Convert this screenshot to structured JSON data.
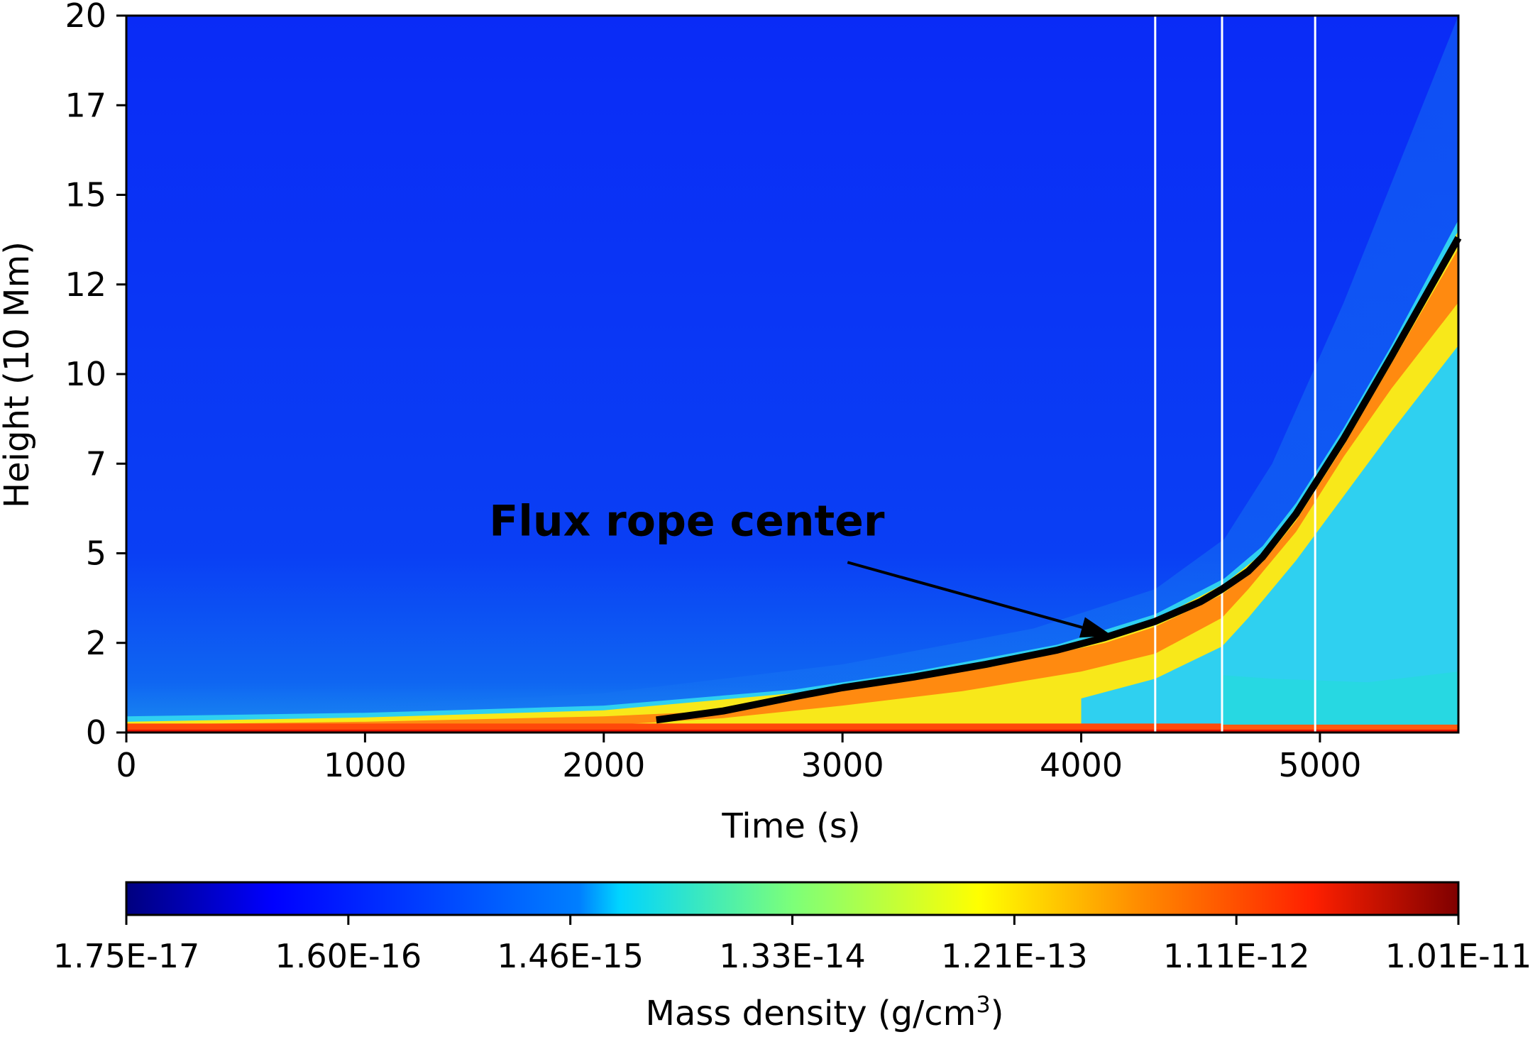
{
  "chart_data": {
    "type": "heatmap",
    "xlabel": "Time (s)",
    "ylabel": "Height (10 Mm)",
    "xlim": [
      0,
      5580
    ],
    "ylim": [
      0,
      20
    ],
    "xticks": [
      0,
      1000,
      2000,
      3000,
      4000,
      5000
    ],
    "xtick_labels": [
      "0",
      "1000",
      "2000",
      "3000",
      "4000",
      "5000"
    ],
    "yticks": [
      0,
      2.5,
      5,
      7.5,
      10,
      12.5,
      15,
      17.5,
      20
    ],
    "ytick_labels": [
      "0",
      "2",
      "5",
      "7",
      "10",
      "12",
      "15",
      "17",
      "20"
    ],
    "grid": false,
    "colormap": "jet",
    "vertical_lines": [
      4310,
      4590,
      4980
    ],
    "flux_rope_center": {
      "x": [
        2220,
        2500,
        2800,
        3000,
        3300,
        3600,
        3900,
        4100,
        4310,
        4500,
        4590,
        4700,
        4760,
        4900,
        5100,
        5300,
        5580
      ],
      "y": [
        0.35,
        0.6,
        1.0,
        1.25,
        1.55,
        1.9,
        2.3,
        2.65,
        3.1,
        3.65,
        4.0,
        4.5,
        4.9,
        6.1,
        8.2,
        10.5,
        13.8
      ]
    },
    "annotation": {
      "text": "Flux rope center",
      "text_x": 1520,
      "text_y": 5.5,
      "arrow_tip_x": 4130,
      "arrow_tip_y": 2.7
    },
    "colorbar": {
      "label": "Mass density (g/cm",
      "label_sup": "3",
      "label_end": ")",
      "tick_labels": [
        "1.75E-17",
        "1.60E-16",
        "1.46E-15",
        "1.33E-14",
        "1.21E-13",
        "1.11E-12",
        "1.01E-11"
      ],
      "colors": [
        "#00007f",
        "#0000ff",
        "#007fff",
        "#00e5f0",
        "#7cff79",
        "#ffff00",
        "#ff8c00",
        "#ff2000",
        "#7f0000"
      ]
    }
  }
}
